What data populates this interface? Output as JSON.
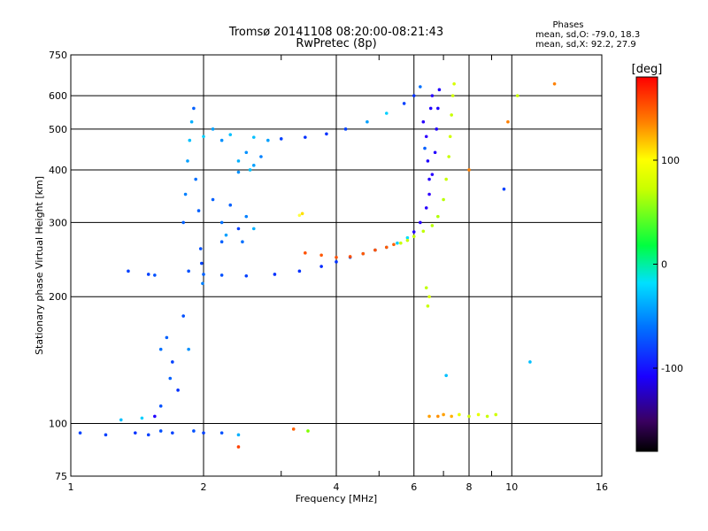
{
  "chart_data": {
    "type": "scatter",
    "title": "Tromsø 20141108 08:20:00-08:21:43",
    "subtitle": "RwPretec (8p)",
    "xlabel": "Frequency [MHz]",
    "ylabel": "Stationary phase Virtual Height [km]",
    "xscale": "log",
    "yscale": "log",
    "xlim": [
      1,
      16
    ],
    "ylim": [
      75,
      750
    ],
    "x_ticks": [
      1,
      2,
      4,
      6,
      8,
      10,
      16
    ],
    "x_minor_ticks": [
      3,
      5,
      7,
      9
    ],
    "y_ticks": [
      75,
      100,
      200,
      300,
      400,
      500,
      600,
      750
    ],
    "grid": true,
    "phase_stats": {
      "heading": "Phases",
      "o_line": "mean, sd,O: -79.0, 18.3",
      "x_line": "mean, sd,X:  92.2, 27.9"
    },
    "colorbar": {
      "label": "[deg]",
      "ticks": [
        100,
        0,
        -100
      ],
      "range": [
        -180,
        180
      ]
    },
    "series": [
      {
        "points": [
          [
            1.85,
            230
          ],
          [
            2.0,
            226
          ],
          [
            2.2,
            225
          ],
          [
            2.5,
            224
          ],
          [
            2.9,
            226
          ],
          [
            3.3,
            230
          ],
          [
            3.7,
            236
          ],
          [
            4.0,
            242
          ],
          [
            4.3,
            248
          ],
          [
            4.6,
            253
          ],
          [
            4.9,
            258
          ],
          [
            5.2,
            262
          ],
          [
            5.5,
            268
          ],
          [
            5.8,
            276
          ],
          [
            6.0,
            285
          ],
          [
            6.2,
            300
          ],
          [
            6.4,
            325
          ],
          [
            6.5,
            350
          ],
          [
            6.6,
            390
          ],
          [
            6.7,
            440
          ],
          [
            6.75,
            500
          ],
          [
            6.8,
            560
          ],
          [
            6.85,
            620
          ],
          [
            2.1,
            500
          ],
          [
            2.3,
            485
          ],
          [
            2.6,
            478
          ],
          [
            3.0,
            474
          ],
          [
            3.4,
            478
          ],
          [
            3.8,
            487
          ],
          [
            4.2,
            500
          ],
          [
            4.7,
            520
          ],
          [
            5.2,
            545
          ],
          [
            5.7,
            575
          ],
          [
            6.0,
            600
          ],
          [
            6.2,
            630
          ],
          [
            1.8,
            300
          ],
          [
            1.82,
            350
          ],
          [
            1.84,
            420
          ],
          [
            1.86,
            470
          ],
          [
            1.88,
            520
          ],
          [
            1.9,
            560
          ],
          [
            1.92,
            380
          ],
          [
            1.95,
            320
          ],
          [
            1.97,
            260
          ],
          [
            1.98,
            240
          ],
          [
            1.99,
            215
          ],
          [
            2.1,
            340
          ],
          [
            2.2,
            300
          ],
          [
            2.25,
            280
          ],
          [
            2.3,
            330
          ],
          [
            2.4,
            290
          ],
          [
            2.45,
            270
          ],
          [
            2.5,
            310
          ],
          [
            2.2,
            270
          ],
          [
            2.6,
            290
          ],
          [
            2.0,
            480
          ],
          [
            2.2,
            470
          ],
          [
            2.4,
            420
          ],
          [
            2.5,
            440
          ],
          [
            2.6,
            410
          ],
          [
            2.7,
            430
          ],
          [
            2.4,
            395
          ],
          [
            2.55,
            400
          ],
          [
            2.8,
            470
          ],
          [
            1.35,
            230
          ],
          [
            1.5,
            226
          ],
          [
            1.55,
            225
          ],
          [
            1.6,
            150
          ],
          [
            1.65,
            160
          ],
          [
            1.7,
            140
          ],
          [
            1.75,
            120
          ],
          [
            1.6,
            110
          ],
          [
            1.68,
            128
          ],
          [
            1.8,
            180
          ],
          [
            1.85,
            150
          ],
          [
            1.05,
            95
          ],
          [
            1.2,
            94
          ],
          [
            1.4,
            95
          ],
          [
            1.5,
            94
          ],
          [
            1.6,
            96
          ],
          [
            1.7,
            95
          ],
          [
            1.9,
            96
          ],
          [
            2.0,
            95
          ],
          [
            2.2,
            95
          ],
          [
            2.4,
            94
          ],
          [
            1.3,
            102
          ],
          [
            1.45,
            103
          ],
          [
            1.55,
            104
          ],
          [
            6.3,
            520
          ],
          [
            6.4,
            480
          ],
          [
            6.45,
            420
          ],
          [
            6.5,
            380
          ],
          [
            6.55,
            560
          ],
          [
            6.6,
            600
          ],
          [
            6.35,
            450
          ]
        ]
      },
      {
        "points": [
          [
            3.4,
            254
          ],
          [
            3.7,
            251
          ],
          [
            4.0,
            248
          ],
          [
            4.3,
            249
          ],
          [
            4.6,
            253
          ],
          [
            4.9,
            258
          ],
          [
            5.2,
            262
          ],
          [
            5.4,
            266
          ],
          [
            5.6,
            268
          ],
          [
            5.8,
            272
          ],
          [
            6.0,
            278
          ],
          [
            6.3,
            286
          ],
          [
            6.6,
            295
          ],
          [
            6.8,
            310
          ],
          [
            7.0,
            340
          ],
          [
            7.1,
            380
          ],
          [
            7.2,
            430
          ],
          [
            7.25,
            480
          ],
          [
            7.3,
            540
          ],
          [
            7.35,
            600
          ],
          [
            7.4,
            640
          ],
          [
            6.5,
            104
          ],
          [
            6.8,
            104
          ],
          [
            7.0,
            105
          ],
          [
            7.3,
            104
          ],
          [
            7.6,
            105
          ],
          [
            8.0,
            104
          ],
          [
            8.4,
            105
          ],
          [
            8.8,
            104
          ],
          [
            9.2,
            105
          ],
          [
            6.4,
            210
          ],
          [
            6.5,
            200
          ],
          [
            6.45,
            190
          ],
          [
            9.8,
            520
          ],
          [
            10.3,
            600
          ],
          [
            12.5,
            640
          ],
          [
            11.0,
            140
          ],
          [
            9.6,
            360
          ],
          [
            8.0,
            400
          ],
          [
            7.1,
            130
          ],
          [
            3.3,
            312
          ],
          [
            3.35,
            315
          ],
          [
            3.2,
            97
          ],
          [
            3.45,
            96
          ],
          [
            2.4,
            88
          ]
        ]
      }
    ]
  }
}
